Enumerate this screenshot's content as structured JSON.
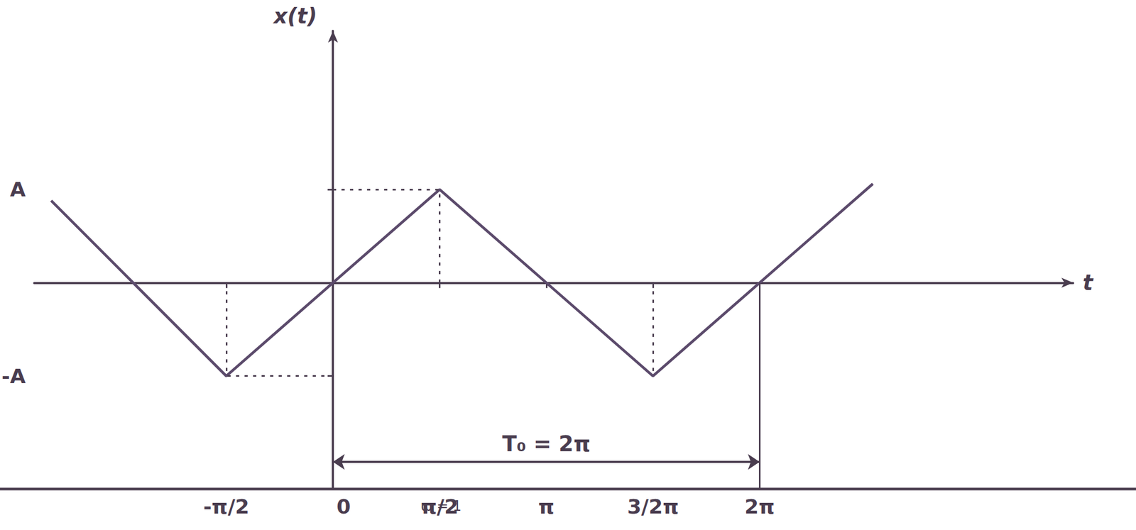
{
  "chart_data": {
    "type": "line",
    "ylabel": "x(t)",
    "xlabel": "t",
    "x": [
      -4.15,
      -1.5708,
      1.5708,
      4.7124,
      7.95
    ],
    "values": [
      0.88,
      -1,
      1,
      -1,
      1.06
    ],
    "color": "#5b4a6b",
    "xlim": [
      -4.4,
      10.9
    ],
    "ylim": [
      -2.2,
      2.7
    ],
    "xticks": [
      {
        "value": -1.5708,
        "label": "-π/2"
      },
      0,
      {
        "value": 1.5708,
        "label": "π/2"
      },
      {
        "value": 3.1416,
        "label": "π"
      },
      {
        "value": 4.7124,
        "label": "3/2π"
      },
      {
        "value": 6.2832,
        "label": "2π"
      }
    ],
    "yticks": [
      {
        "value": 1,
        "label": "A"
      },
      {
        "value": -1,
        "label": "-A"
      }
    ],
    "grid": false,
    "annotations": [
      {
        "text": "T₀ = 2π",
        "x_from": 0,
        "x_to": 6.2832
      },
      {
        "text": "ω = 1"
      }
    ]
  }
}
